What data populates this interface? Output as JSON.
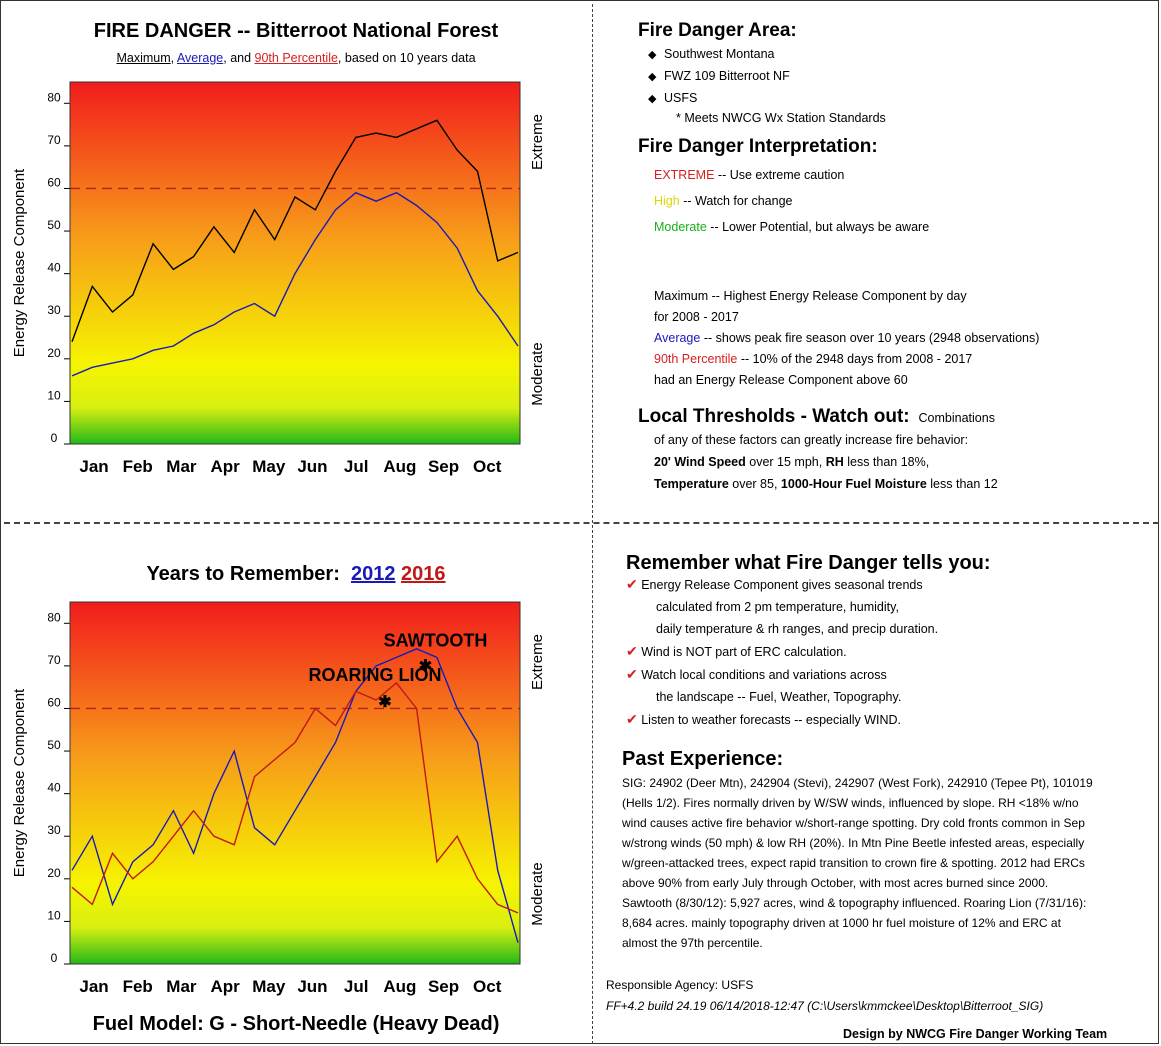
{
  "charts_meta": {
    "top_title": "FIRE DANGER -- Bitterroot National Forest",
    "top_subtitle": {
      "max": "Maximum",
      "sep1": ", ",
      "avg": "Average",
      "sep2": ", and ",
      "p90": "90th Percentile",
      "rest": ", based on 10 years data"
    },
    "bottom_title": "Years to Remember:",
    "year1": "2012",
    "year2": "2016",
    "fuel_model": "Fuel Model: G - Short-Needle (Heavy Dead)",
    "ylabel": "Energy Release Component",
    "right_top": "Extreme",
    "right_bottom": "Moderate",
    "annot_sawtooth": "SAWTOOTH",
    "annot_roaring": "ROARING LION",
    "colors": {
      "max": "#000000",
      "avg": "#1a1ab8",
      "p90": "#d62020",
      "y2012": "#1a1ab8",
      "y2016": "#c01818"
    }
  },
  "chart_data": [
    {
      "type": "line",
      "title": "FIRE DANGER -- Bitterroot National Forest",
      "ylabel": "Energy Release Component",
      "ylim": [
        0,
        85
      ],
      "yticks": [
        0,
        10,
        20,
        30,
        40,
        50,
        60,
        70,
        80
      ],
      "xlabels": [
        "Jan",
        "Feb",
        "Mar",
        "Apr",
        "May",
        "Jun",
        "Jul",
        "Aug",
        "Sep",
        "Oct"
      ],
      "threshold": 60,
      "series": [
        {
          "name": "Maximum",
          "color": "#000000",
          "values": [
            24,
            37,
            31,
            35,
            47,
            41,
            44,
            51,
            45,
            55,
            48,
            58,
            55,
            64,
            72,
            73,
            72,
            74,
            76,
            69,
            64,
            43,
            45
          ]
        },
        {
          "name": "Average",
          "color": "#1a1ab8",
          "values": [
            16,
            18,
            19,
            20,
            22,
            23,
            26,
            28,
            31,
            33,
            30,
            40,
            48,
            55,
            59,
            57,
            59,
            56,
            52,
            46,
            36,
            30,
            23
          ]
        },
        {
          "name": "90th Percentile",
          "color": "#d62020",
          "values": [
            60,
            60
          ]
        }
      ]
    },
    {
      "type": "line",
      "title": "Years to Remember: 2012 2016",
      "ylabel": "Energy Release Component",
      "ylim": [
        0,
        85
      ],
      "yticks": [
        0,
        10,
        20,
        30,
        40,
        50,
        60,
        70,
        80
      ],
      "xlabels": [
        "Jan",
        "Feb",
        "Mar",
        "Apr",
        "May",
        "Jun",
        "Jul",
        "Aug",
        "Sep",
        "Oct"
      ],
      "threshold": 60,
      "series": [
        {
          "name": "2012",
          "color": "#1a1ab8",
          "values": [
            22,
            30,
            14,
            24,
            28,
            36,
            26,
            40,
            50,
            32,
            28,
            36,
            44,
            52,
            64,
            70,
            72,
            74,
            72,
            60,
            52,
            22,
            5
          ]
        },
        {
          "name": "2016",
          "color": "#c01818",
          "values": [
            18,
            14,
            26,
            20,
            24,
            30,
            36,
            30,
            28,
            44,
            48,
            52,
            60,
            56,
            64,
            62,
            66,
            60,
            24,
            30,
            20,
            14,
            12
          ]
        }
      ]
    }
  ],
  "area": {
    "title": "Fire Danger Area:",
    "items": [
      "Southwest Montana",
      "FWZ 109 Bitterroot NF",
      "USFS"
    ],
    "note": "* Meets NWCG Wx Station Standards"
  },
  "interp": {
    "title": "Fire Danger Interpretation:",
    "extreme": "EXTREME",
    "extreme_desc": " -- Use extreme caution",
    "high": "High",
    "high_desc": " -- Watch for change",
    "moderate": "Moderate",
    "moderate_desc": " -- Lower Potential, but always be aware"
  },
  "defs": {
    "max_line1": "Maximum  -- Highest Energy Release Component by day",
    "max_line2": "for 2008 - 2017",
    "avg_label": "Average",
    "avg_desc": " -- shows peak fire season over 10 years (2948 observations)",
    "p90_label": "90th Percentile",
    "p90_desc": "  -- 10% of the 2948 days from 2008 - 2017",
    "p90_line2": "had an Energy Release Component above 60"
  },
  "thresholds": {
    "title": "Local Thresholds - Watch out:",
    "title_small": "Combinations",
    "line1": "of any of these factors can greatly increase fire behavior:",
    "w_b": "20' Wind Speed",
    "w_r": " over 15 mph, ",
    "rh_b": "RH",
    "rh_r": "  less than 18%,",
    "t_b": "Temperature",
    "t_r": " over 85, ",
    "f_b": "1000-Hour Fuel Moisture",
    "f_r": " less than 12"
  },
  "remember": {
    "title": "Remember what Fire Danger tells you:",
    "l1": "Energy Release Component gives seasonal trends",
    "l1b": "calculated from 2 pm temperature, humidity,",
    "l1c": "daily temperature & rh ranges, and precip duration.",
    "l2": "Wind is NOT part of ERC calculation.",
    "l3": "Watch local conditions and variations across",
    "l3b": "the landscape -- Fuel, Weather, Topography.",
    "l4": "Listen to weather forecasts -- especially WIND."
  },
  "past": {
    "title": "Past Experience:",
    "lines": [
      "SIG: 24902 (Deer Mtn), 242904 (Stevi), 242907 (West Fork), 242910 (Tepee Pt), 101019",
      "(Hells 1/2).  Fires normally driven by W/SW winds, influenced by slope.  RH <18% w/no",
      "wind causes active fire behavior w/short-range spotting.  Dry cold fronts common in Sep",
      "w/strong winds (50 mph) & low RH (20%).  In Mtn Pine Beetle infested areas, especially",
      "w/green-attacked trees, expect rapid transition to crown fire & spotting.  2012 had ERCs",
      "above 90% from early July through October, with most acres burned since 2000.",
      "Sawtooth (8/30/12): 5,927 acres, wind & topography influenced.  Roaring Lion (7/31/16):",
      "8,684 acres. mainly topography driven at 1000 hr fuel moisture of 12% and ERC at",
      "almost the 97th percentile."
    ]
  },
  "footer": {
    "agency": "Responsible Agency: USFS",
    "build": "FF+4.2 build 24.19 06/14/2018-12:47 (C:\\Users\\kmmckee\\Desktop\\Bitterroot_SIG)",
    "design": "Design by NWCG Fire Danger Working Team"
  }
}
